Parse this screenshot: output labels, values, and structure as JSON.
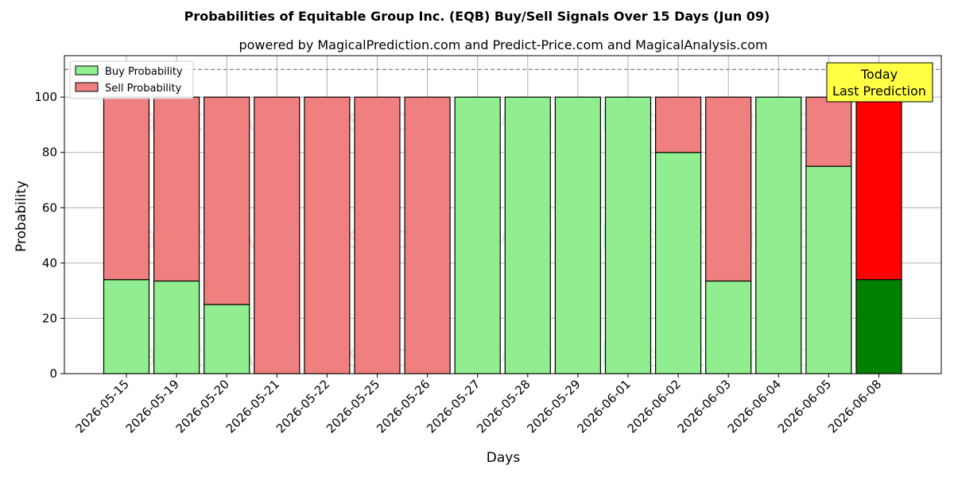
{
  "chart_data": {
    "type": "bar",
    "stacked": true,
    "title": "Probabilities of Equitable Group Inc. (EQB) Buy/Sell Signals Over 15 Days (Jun 09)",
    "subtitle": "powered by MagicalPrediction.com and Predict-Price.com and MagicalAnalysis.com",
    "xlabel": "Days",
    "ylabel": "Probability",
    "ylim": [
      0,
      115
    ],
    "yticks": [
      0,
      20,
      40,
      60,
      80,
      100
    ],
    "grid": true,
    "legend_position": "top-left",
    "threshold_line": 110,
    "categories": [
      "2026-05-15",
      "2026-05-19",
      "2026-05-20",
      "2026-05-21",
      "2026-05-22",
      "2026-05-25",
      "2026-05-26",
      "2026-05-27",
      "2026-05-28",
      "2026-05-29",
      "2026-06-01",
      "2026-06-02",
      "2026-06-03",
      "2026-06-04",
      "2026-06-05",
      "2026-06-08"
    ],
    "series": [
      {
        "name": "Buy Probability",
        "color": "#90ee90",
        "highlight_color": "#008000",
        "values": [
          34,
          33.5,
          25,
          0,
          0,
          0,
          0,
          100,
          100,
          100,
          100,
          80,
          33.5,
          100,
          75,
          34
        ]
      },
      {
        "name": "Sell Probability",
        "color": "#f08080",
        "highlight_color": "#ff0000",
        "values": [
          66,
          66.5,
          75,
          100,
          100,
          100,
          100,
          0,
          0,
          0,
          0,
          20,
          66.5,
          0,
          25,
          66
        ]
      }
    ],
    "annotation": {
      "line1": "Today",
      "line2": "Last Prediction",
      "color": "#ffff44"
    },
    "watermarks": [
      "MagicalAnalysis.com",
      "MagicalPrediction.com"
    ]
  }
}
